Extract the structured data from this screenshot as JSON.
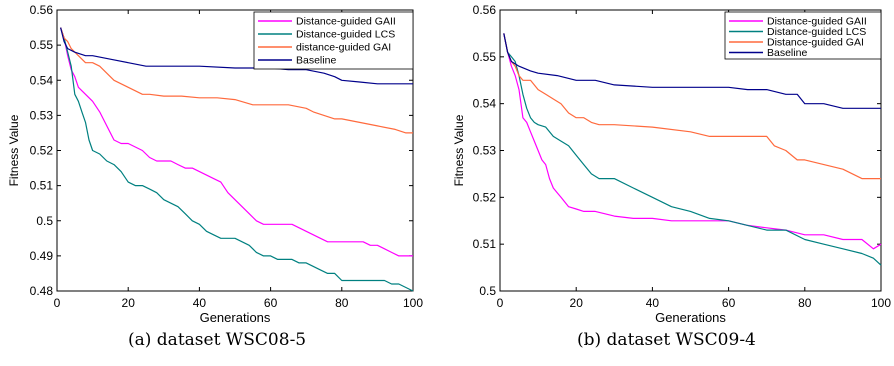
{
  "colors": {
    "gaii": "#ff00ff",
    "lcs": "#008080",
    "gai": "#ff6a3d",
    "baseline": "#00008b"
  },
  "chart_data": [
    {
      "type": "line",
      "caption": "(a) dataset WSC08-5",
      "xlabel": "Generations",
      "ylabel": "Fitness Value",
      "xlim": [
        0,
        100
      ],
      "ylim": [
        0.48,
        0.56
      ],
      "xticks": [
        0,
        20,
        40,
        60,
        80,
        100
      ],
      "yticks": [
        0.48,
        0.49,
        0.5,
        0.51,
        0.52,
        0.53,
        0.54,
        0.55,
        0.56
      ],
      "ytick_labels": [
        "0.48",
        "0.49",
        "0.5",
        "0.51",
        "0.52",
        "0.53",
        "0.54",
        "0.55",
        "0.56"
      ],
      "legend_position": "top-right",
      "series": [
        {
          "name": "Distance-guided GAII",
          "color_key": "gaii",
          "x": [
            1,
            2,
            3,
            4,
            5,
            6,
            8,
            10,
            12,
            14,
            16,
            18,
            20,
            22,
            24,
            26,
            28,
            30,
            32,
            34,
            36,
            38,
            40,
            42,
            44,
            46,
            48,
            50,
            52,
            54,
            56,
            58,
            60,
            62,
            64,
            66,
            68,
            70,
            72,
            74,
            76,
            78,
            80,
            82,
            84,
            86,
            88,
            90,
            92,
            94,
            96,
            98,
            100
          ],
          "y": [
            0.555,
            0.552,
            0.547,
            0.543,
            0.541,
            0.538,
            0.536,
            0.534,
            0.531,
            0.527,
            0.523,
            0.522,
            0.522,
            0.521,
            0.52,
            0.518,
            0.517,
            0.517,
            0.517,
            0.516,
            0.515,
            0.515,
            0.514,
            0.513,
            0.512,
            0.511,
            0.508,
            0.506,
            0.504,
            0.502,
            0.5,
            0.499,
            0.499,
            0.499,
            0.499,
            0.499,
            0.498,
            0.497,
            0.496,
            0.495,
            0.494,
            0.494,
            0.494,
            0.494,
            0.494,
            0.494,
            0.493,
            0.493,
            0.492,
            0.491,
            0.49,
            0.49,
            0.49
          ]
        },
        {
          "name": "Distance-guided LCS",
          "color_key": "lcs",
          "x": [
            1,
            2,
            3,
            4,
            5,
            6,
            7,
            8,
            9,
            10,
            12,
            14,
            16,
            18,
            20,
            22,
            24,
            26,
            28,
            30,
            32,
            34,
            36,
            38,
            40,
            42,
            44,
            46,
            48,
            50,
            52,
            54,
            56,
            58,
            60,
            62,
            64,
            66,
            68,
            70,
            72,
            74,
            76,
            78,
            80,
            82,
            84,
            86,
            88,
            90,
            92,
            94,
            96,
            98,
            100
          ],
          "y": [
            0.555,
            0.552,
            0.548,
            0.544,
            0.536,
            0.534,
            0.531,
            0.528,
            0.523,
            0.52,
            0.519,
            0.517,
            0.516,
            0.514,
            0.511,
            0.51,
            0.51,
            0.509,
            0.508,
            0.506,
            0.505,
            0.504,
            0.502,
            0.5,
            0.499,
            0.497,
            0.496,
            0.495,
            0.495,
            0.495,
            0.494,
            0.493,
            0.491,
            0.49,
            0.49,
            0.489,
            0.489,
            0.489,
            0.488,
            0.488,
            0.487,
            0.486,
            0.485,
            0.485,
            0.483,
            0.483,
            0.483,
            0.483,
            0.483,
            0.483,
            0.483,
            0.482,
            0.482,
            0.481,
            0.48
          ]
        },
        {
          "name": "distance-guided GAI",
          "color_key": "gai",
          "x": [
            1,
            2,
            3,
            4,
            6,
            8,
            10,
            12,
            14,
            16,
            18,
            20,
            22,
            24,
            26,
            30,
            35,
            40,
            45,
            50,
            55,
            60,
            65,
            70,
            72,
            75,
            78,
            80,
            85,
            90,
            95,
            98,
            100
          ],
          "y": [
            0.555,
            0.552,
            0.551,
            0.549,
            0.547,
            0.545,
            0.545,
            0.544,
            0.542,
            0.54,
            0.539,
            0.538,
            0.537,
            0.536,
            0.536,
            0.5355,
            0.5355,
            0.535,
            0.535,
            0.5345,
            0.533,
            0.533,
            0.533,
            0.532,
            0.531,
            0.53,
            0.529,
            0.529,
            0.528,
            0.527,
            0.526,
            0.525,
            0.525
          ]
        },
        {
          "name": "Baseline",
          "color_key": "baseline",
          "x": [
            1,
            2,
            3,
            5,
            8,
            10,
            15,
            20,
            25,
            30,
            40,
            50,
            60,
            65,
            70,
            75,
            78,
            80,
            85,
            90,
            95,
            100
          ],
          "y": [
            0.555,
            0.551,
            0.549,
            0.548,
            0.547,
            0.547,
            0.546,
            0.545,
            0.544,
            0.544,
            0.544,
            0.5435,
            0.5435,
            0.543,
            0.543,
            0.542,
            0.541,
            0.54,
            0.5395,
            0.539,
            0.539,
            0.539
          ]
        }
      ]
    },
    {
      "type": "line",
      "caption": "(b) dataset WSC09-4",
      "xlabel": "Generations",
      "ylabel": "Fitness Value",
      "xlim": [
        0,
        100
      ],
      "ylim": [
        0.5,
        0.56
      ],
      "xticks": [
        0,
        20,
        40,
        60,
        80,
        100
      ],
      "yticks": [
        0.5,
        0.51,
        0.52,
        0.53,
        0.54,
        0.55,
        0.56
      ],
      "ytick_labels": [
        "0.5",
        "0.51",
        "0.52",
        "0.53",
        "0.54",
        "0.55",
        "0.56"
      ],
      "legend_position": "top-right",
      "series": [
        {
          "name": "Distance-guided GAII",
          "color_key": "gaii",
          "x": [
            1,
            2,
            3,
            4,
            5,
            6,
            7,
            8,
            9,
            10,
            11,
            12,
            13,
            14,
            15,
            16,
            17,
            18,
            20,
            22,
            25,
            30,
            35,
            40,
            45,
            50,
            55,
            60,
            65,
            70,
            75,
            80,
            85,
            90,
            95,
            98,
            100
          ],
          "y": [
            0.555,
            0.551,
            0.548,
            0.546,
            0.543,
            0.537,
            0.536,
            0.534,
            0.532,
            0.53,
            0.528,
            0.527,
            0.524,
            0.522,
            0.521,
            0.52,
            0.519,
            0.518,
            0.5175,
            0.517,
            0.517,
            0.516,
            0.5155,
            0.5155,
            0.515,
            0.515,
            0.515,
            0.515,
            0.514,
            0.5135,
            0.513,
            0.512,
            0.512,
            0.511,
            0.511,
            0.509,
            0.51
          ]
        },
        {
          "name": "Distance-guided LCS",
          "color_key": "lcs",
          "x": [
            1,
            2,
            3,
            4,
            5,
            6,
            7,
            8,
            9,
            10,
            12,
            14,
            16,
            18,
            20,
            22,
            24,
            26,
            28,
            30,
            35,
            40,
            45,
            50,
            55,
            60,
            65,
            70,
            75,
            80,
            85,
            90,
            95,
            98,
            100
          ],
          "y": [
            0.555,
            0.551,
            0.55,
            0.549,
            0.546,
            0.542,
            0.539,
            0.537,
            0.536,
            0.5355,
            0.535,
            0.533,
            0.532,
            0.531,
            0.529,
            0.527,
            0.525,
            0.524,
            0.524,
            0.524,
            0.522,
            0.52,
            0.518,
            0.517,
            0.5155,
            0.515,
            0.514,
            0.513,
            0.513,
            0.511,
            0.51,
            0.509,
            0.508,
            0.507,
            0.5055
          ]
        },
        {
          "name": "Distance-guided GAI",
          "color_key": "gai",
          "x": [
            1,
            2,
            3,
            4,
            5,
            6,
            8,
            10,
            12,
            14,
            16,
            18,
            20,
            22,
            24,
            26,
            30,
            40,
            50,
            55,
            60,
            65,
            70,
            72,
            75,
            78,
            80,
            85,
            90,
            95,
            98,
            100
          ],
          "y": [
            0.555,
            0.551,
            0.549,
            0.548,
            0.546,
            0.545,
            0.545,
            0.543,
            0.542,
            0.541,
            0.54,
            0.538,
            0.537,
            0.537,
            0.536,
            0.5355,
            0.5355,
            0.535,
            0.534,
            0.533,
            0.533,
            0.533,
            0.533,
            0.531,
            0.53,
            0.528,
            0.528,
            0.527,
            0.526,
            0.524,
            0.524,
            0.524
          ]
        },
        {
          "name": "Baseline",
          "color_key": "baseline",
          "x": [
            1,
            2,
            3,
            5,
            8,
            10,
            15,
            20,
            25,
            30,
            40,
            50,
            60,
            65,
            70,
            75,
            78,
            80,
            85,
            90,
            95,
            100
          ],
          "y": [
            0.555,
            0.551,
            0.549,
            0.548,
            0.547,
            0.5465,
            0.546,
            0.545,
            0.545,
            0.544,
            0.5435,
            0.5435,
            0.5435,
            0.543,
            0.543,
            0.542,
            0.542,
            0.54,
            0.54,
            0.539,
            0.539,
            0.539
          ]
        }
      ]
    }
  ]
}
